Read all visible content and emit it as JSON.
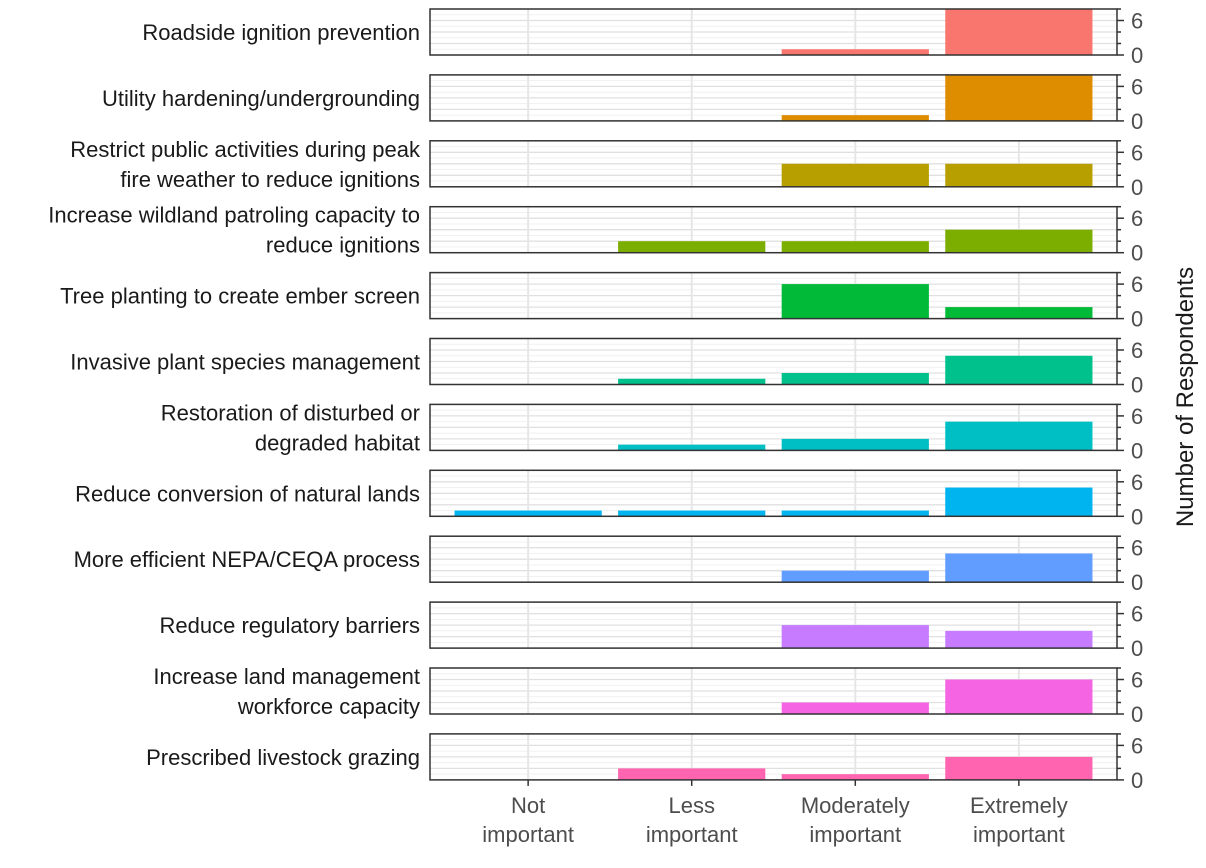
{
  "chart_data": {
    "type": "bar",
    "layout": "small-multiples",
    "categories": [
      "Not important",
      "Less important",
      "Moderately important",
      "Extremely important"
    ],
    "category_lines": [
      [
        "Not",
        "important"
      ],
      [
        "Less",
        "important"
      ],
      [
        "Moderately",
        "important"
      ],
      [
        "Extremely",
        "important"
      ]
    ],
    "ylabel": "Number of Respondents",
    "ylim": [
      0,
      8
    ],
    "y_ticks": [
      0,
      6
    ],
    "y_minor_ticks": [
      2,
      4,
      8
    ],
    "grid": true,
    "panels": [
      {
        "label": [
          "Roadside ignition prevention"
        ],
        "values": [
          0,
          0,
          1,
          8
        ],
        "color": "#F8766D"
      },
      {
        "label": [
          "Utility hardening/undergrounding"
        ],
        "values": [
          0,
          0,
          1,
          8
        ],
        "color": "#DE8C00"
      },
      {
        "label": [
          "Restrict public activities during peak",
          "fire weather to reduce ignitions"
        ],
        "values": [
          0,
          0,
          4,
          4
        ],
        "color": "#B79F00"
      },
      {
        "label": [
          "Increase wildland patroling capacity to",
          "reduce ignitions"
        ],
        "values": [
          0,
          2,
          2,
          4
        ],
        "color": "#7CAE00"
      },
      {
        "label": [
          "Tree planting to create ember screen"
        ],
        "values": [
          0,
          0,
          6,
          2
        ],
        "color": "#00BA38"
      },
      {
        "label": [
          "Invasive plant species management"
        ],
        "values": [
          0,
          1,
          2,
          5
        ],
        "color": "#00C08B"
      },
      {
        "label": [
          "Restoration of disturbed or",
          "degraded habitat"
        ],
        "values": [
          0,
          1,
          2,
          5
        ],
        "color": "#00BFC4"
      },
      {
        "label": [
          "Reduce conversion of natural lands"
        ],
        "values": [
          1,
          1,
          1,
          5
        ],
        "color": "#00B4F0"
      },
      {
        "label": [
          "More efficient NEPA/CEQA process"
        ],
        "values": [
          0,
          0,
          2,
          5
        ],
        "color": "#619CFF"
      },
      {
        "label": [
          "Reduce regulatory barriers"
        ],
        "values": [
          0,
          0,
          4,
          3
        ],
        "color": "#C77CFF"
      },
      {
        "label": [
          "Increase land management",
          "workforce capacity"
        ],
        "values": [
          0,
          0,
          2,
          6
        ],
        "color": "#F564E3"
      },
      {
        "label": [
          "Prescribed livestock grazing"
        ],
        "values": [
          0,
          2,
          1,
          4
        ],
        "color": "#FF64B0"
      }
    ]
  }
}
